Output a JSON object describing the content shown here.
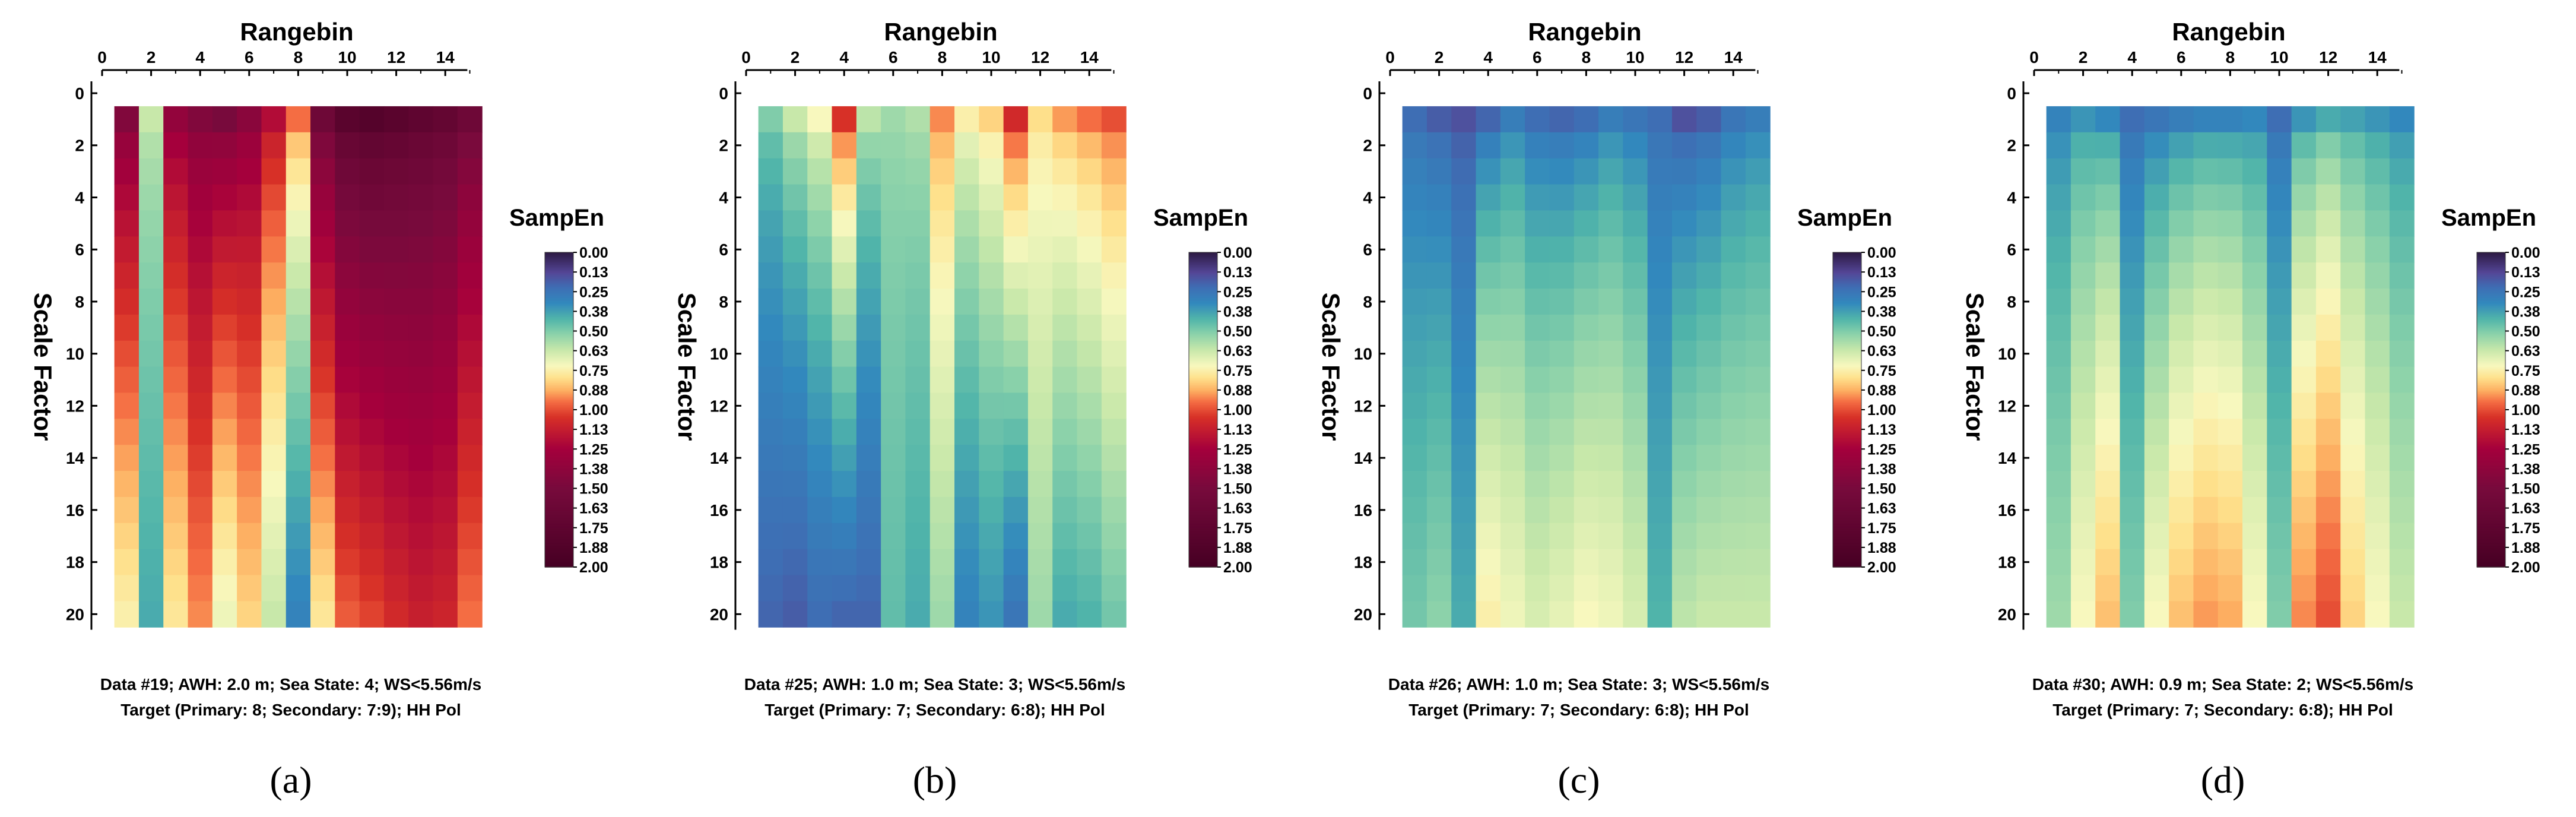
{
  "chart_data": [
    {
      "type": "heatmap",
      "panel_label": "(a)",
      "xlabel": "Rangebin",
      "ylabel": "Scale Factor",
      "colorbar_title": "SampEn",
      "colorbar_ticks": [
        "0.00",
        "0.13",
        "0.25",
        "0.38",
        "0.50",
        "0.63",
        "0.75",
        "0.88",
        "1.00",
        "1.13",
        "1.25",
        "1.38",
        "1.50",
        "1.63",
        "1.75",
        "1.88",
        "2.00"
      ],
      "colorbar_range": [
        0,
        2
      ],
      "x_ticks": [
        "0",
        "2",
        "4",
        "6",
        "8",
        "10",
        "12",
        "14"
      ],
      "y_ticks": [
        "0",
        "2",
        "4",
        "6",
        "8",
        "10",
        "12",
        "14",
        "16",
        "18",
        "20"
      ],
      "caption_line1": "Data #19; AWH: 2.0 m; Sea State: 4; WS<5.56m/s",
      "caption_line2": "Target (Primary: 8; Secondary: 7:9); HH Pol",
      "rangebins": 15,
      "scales": 20,
      "col_start": [
        1.45,
        0.62,
        1.35,
        1.45,
        1.5,
        1.4,
        1.2,
        0.95,
        1.6,
        1.8,
        1.85,
        1.8,
        1.75,
        1.7,
        1.6
      ],
      "col_end": [
        0.75,
        0.4,
        0.78,
        0.92,
        0.7,
        0.82,
        0.62,
        0.3,
        0.78,
        0.98,
        1.02,
        1.08,
        1.12,
        1.1,
        0.95
      ]
    },
    {
      "type": "heatmap",
      "panel_label": "(b)",
      "xlabel": "Rangebin",
      "ylabel": "Scale Factor",
      "colorbar_title": "SampEn",
      "colorbar_ticks": [
        "0.00",
        "0.13",
        "0.25",
        "0.38",
        "0.50",
        "0.63",
        "0.75",
        "0.88",
        "1.00",
        "1.13",
        "1.25",
        "1.38",
        "1.50",
        "1.63",
        "1.75",
        "1.88",
        "2.00"
      ],
      "colorbar_range": [
        0,
        2
      ],
      "x_ticks": [
        "0",
        "2",
        "4",
        "6",
        "8",
        "10",
        "12",
        "14"
      ],
      "y_ticks": [
        "0",
        "2",
        "4",
        "6",
        "8",
        "10",
        "12",
        "14",
        "16",
        "18",
        "20"
      ],
      "caption_line1": "Data #25; AWH: 1.0 m; Sea State: 3; WS<5.56m/s",
      "caption_line2": "Target (Primary: 7; Secondary: 6:8); HH Pol",
      "rangebins": 15,
      "scales": 20,
      "col_start": [
        0.5,
        0.62,
        0.72,
        1.05,
        0.6,
        0.55,
        0.58,
        0.92,
        0.75,
        0.82,
        1.08,
        0.8,
        0.9,
        0.95,
        1.0
      ],
      "col_end": [
        0.2,
        0.18,
        0.22,
        0.2,
        0.2,
        0.45,
        0.4,
        0.55,
        0.3,
        0.35,
        0.25,
        0.55,
        0.4,
        0.42,
        0.48
      ]
    },
    {
      "type": "heatmap",
      "panel_label": "(c)",
      "xlabel": "Rangebin",
      "ylabel": "Scale Factor",
      "colorbar_title": "SampEn",
      "colorbar_ticks": [
        "0.00",
        "0.13",
        "0.25",
        "0.38",
        "0.50",
        "0.63",
        "0.75",
        "0.88",
        "1.00",
        "1.13",
        "1.25",
        "1.38",
        "1.50",
        "1.63",
        "1.75",
        "1.88",
        "2.00"
      ],
      "colorbar_range": [
        0,
        2
      ],
      "x_ticks": [
        "0",
        "2",
        "4",
        "6",
        "8",
        "10",
        "12",
        "14"
      ],
      "y_ticks": [
        "0",
        "2",
        "4",
        "6",
        "8",
        "10",
        "12",
        "14",
        "16",
        "18",
        "20"
      ],
      "caption_line1": "Data #26; AWH: 1.0 m; Sea State: 3; WS<5.56m/s",
      "caption_line2": "Target (Primary: 7; Secondary: 6:8); HH Pol",
      "rangebins": 15,
      "scales": 20,
      "col_start": [
        0.22,
        0.18,
        0.15,
        0.2,
        0.28,
        0.22,
        0.2,
        0.22,
        0.28,
        0.25,
        0.22,
        0.15,
        0.18,
        0.25,
        0.28
      ],
      "col_end": [
        0.48,
        0.52,
        0.4,
        0.75,
        0.7,
        0.65,
        0.68,
        0.72,
        0.7,
        0.65,
        0.42,
        0.6,
        0.62,
        0.62,
        0.62
      ]
    },
    {
      "type": "heatmap",
      "panel_label": "(d)",
      "xlabel": "Rangebin",
      "ylabel": "Scale Factor",
      "colorbar_title": "SampEn",
      "colorbar_ticks": [
        "0.00",
        "0.13",
        "0.25",
        "0.38",
        "0.50",
        "0.63",
        "0.75",
        "0.88",
        "1.00",
        "1.13",
        "1.25",
        "1.38",
        "1.50",
        "1.63",
        "1.75",
        "1.88",
        "2.00"
      ],
      "colorbar_range": [
        0,
        2
      ],
      "x_ticks": [
        "0",
        "2",
        "4",
        "6",
        "8",
        "10",
        "12",
        "14"
      ],
      "y_ticks": [
        "0",
        "2",
        "4",
        "6",
        "8",
        "10",
        "12",
        "14",
        "16",
        "18",
        "20"
      ],
      "caption_line1": "Data #30; AWH: 0.9 m; Sea State: 2; WS<5.56m/s",
      "caption_line2": "Target (Primary: 7; Secondary: 6:8); HH Pol",
      "rangebins": 15,
      "scales": 20,
      "col_start": [
        0.3,
        0.35,
        0.32,
        0.22,
        0.25,
        0.28,
        0.3,
        0.3,
        0.32,
        0.22,
        0.35,
        0.4,
        0.38,
        0.35,
        0.32
      ],
      "col_end": [
        0.55,
        0.72,
        0.85,
        0.5,
        0.72,
        0.85,
        0.9,
        0.88,
        0.72,
        0.5,
        0.92,
        1.0,
        0.82,
        0.72,
        0.62
      ]
    }
  ]
}
